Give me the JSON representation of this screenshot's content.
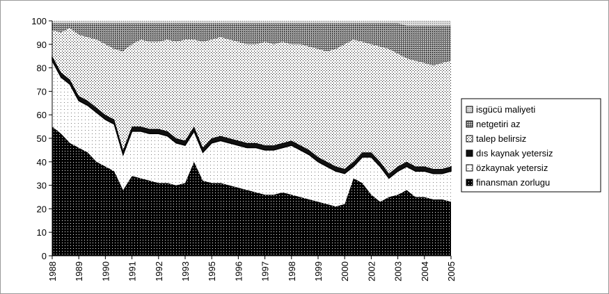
{
  "chart_data": {
    "type": "stacked_area",
    "categories": [
      "1988",
      null,
      null,
      "1989",
      null,
      null,
      "1990",
      null,
      null,
      "1991",
      null,
      null,
      "1992",
      null,
      null,
      "1993",
      null,
      null,
      "1995",
      null,
      null,
      "1996",
      null,
      null,
      "1997",
      null,
      null,
      "1998",
      null,
      null,
      "1999",
      null,
      null,
      "2000",
      null,
      null,
      "2002",
      null,
      null,
      "2003",
      null,
      null,
      "2004",
      null,
      null,
      "2005"
    ],
    "series": [
      {
        "name": "finansman zorlugu",
        "color": "#000000",
        "values": [
          55,
          52,
          48,
          46,
          44,
          40,
          38,
          36,
          28,
          34,
          33,
          32,
          31,
          31,
          30,
          31,
          40,
          32,
          31,
          31,
          30,
          29,
          28,
          27,
          26,
          26,
          27,
          26,
          25,
          24,
          23,
          22,
          21,
          22,
          33,
          31,
          26,
          23,
          25,
          26,
          28,
          25,
          25,
          24,
          24,
          23
        ]
      },
      {
        "name": "özkaynak yetersiz",
        "color": "#ffffff",
        "values": [
          28,
          24,
          25,
          20,
          20,
          21,
          20,
          20,
          15,
          19,
          20,
          20,
          21,
          20,
          18,
          16,
          13,
          12,
          17,
          18,
          18,
          18,
          18,
          19,
          19,
          19,
          19,
          21,
          20,
          19,
          17,
          16,
          15,
          13,
          5,
          11,
          16,
          15,
          8,
          10,
          10,
          11,
          11,
          11,
          11,
          13
        ]
      },
      {
        "name": "dıs kaynak yetersiz",
        "color": "#111111",
        "values": [
          2,
          2,
          2,
          2,
          2,
          2,
          2,
          2,
          2,
          2,
          2,
          2,
          2,
          2,
          2,
          2,
          2,
          2,
          2,
          2,
          2,
          2,
          2,
          2,
          2,
          2,
          2,
          2,
          2,
          2,
          2,
          2,
          2,
          2,
          2,
          2,
          2,
          2,
          2,
          2,
          2,
          2,
          2,
          2,
          2,
          2
        ]
      },
      {
        "name": "talep belirsiz",
        "color": "#f4f4f4",
        "values": [
          11,
          17,
          22,
          26,
          27,
          29,
          30,
          30,
          42,
          35,
          37,
          37,
          37,
          39,
          41,
          43,
          37,
          45,
          42,
          42,
          42,
          42,
          42,
          42,
          44,
          43,
          43,
          41,
          43,
          44,
          46,
          47,
          50,
          53,
          52,
          47,
          46,
          49,
          53,
          48,
          44,
          45,
          44,
          44,
          45,
          45
        ]
      },
      {
        "name": "netgetiri az",
        "color": "#6e6e6e",
        "values": [
          3,
          4,
          2,
          5,
          6,
          7,
          9,
          11,
          12,
          9,
          7,
          8,
          8,
          7,
          8,
          7,
          7,
          8,
          7,
          6,
          7,
          8,
          9,
          9,
          8,
          9,
          8,
          9,
          9,
          10,
          11,
          12,
          11,
          9,
          7,
          8,
          9,
          10,
          11,
          13,
          14,
          15,
          16,
          17,
          16,
          15
        ]
      },
      {
        "name": "isgücü maliyeti",
        "color": "#c8c8c8",
        "values": [
          1,
          1,
          1,
          1,
          1,
          1,
          1,
          1,
          1,
          1,
          1,
          1,
          1,
          1,
          1,
          1,
          1,
          1,
          1,
          1,
          1,
          1,
          1,
          1,
          1,
          1,
          1,
          1,
          1,
          1,
          1,
          1,
          1,
          1,
          1,
          1,
          1,
          1,
          1,
          1,
          2,
          2,
          2,
          2,
          2,
          2
        ]
      }
    ],
    "ylim": [
      0,
      100
    ],
    "yticks": [
      0,
      10,
      20,
      30,
      40,
      50,
      60,
      70,
      80,
      90,
      100
    ],
    "legend": "right"
  }
}
